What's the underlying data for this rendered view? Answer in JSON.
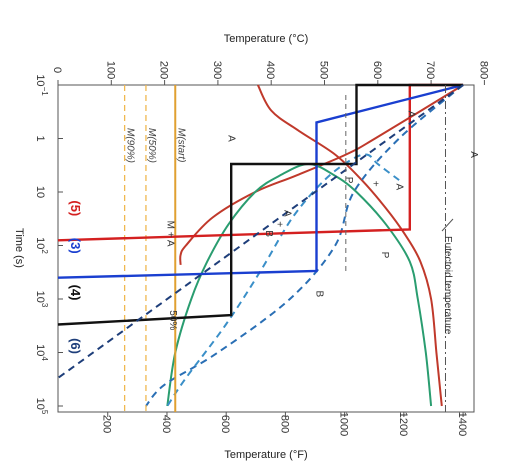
{
  "chart_data": {
    "type": "line",
    "orientation": "rotated-90-clockwise",
    "x_axis": {
      "label": "Time (s)",
      "scale": "log",
      "range_s": [
        0.1,
        100000
      ],
      "ticks": [
        {
          "value": 0.1,
          "base": "10",
          "exp": "−1"
        },
        {
          "value": 1,
          "base": "1",
          "exp": ""
        },
        {
          "value": 10,
          "base": "10",
          "exp": ""
        },
        {
          "value": 100,
          "base": "10",
          "exp": "2"
        },
        {
          "value": 1000,
          "base": "10",
          "exp": "3"
        },
        {
          "value": 10000,
          "base": "10",
          "exp": "4"
        },
        {
          "value": 100000,
          "base": "10",
          "exp": "5"
        }
      ]
    },
    "temp_c_axis": {
      "label": "Temperature (°C)",
      "ticks": [
        "0",
        "100",
        "200",
        "300",
        "400",
        "500",
        "600",
        "700",
        "800"
      ]
    },
    "temp_f_axis": {
      "label": "Temperature (°F)",
      "ticks": [
        "200",
        "400",
        "600",
        "800",
        "1000",
        "1200",
        "1400"
      ]
    },
    "eutectoid_c": 727,
    "eutectoid_label": "Eutectoid temperature",
    "martensite_lines": [
      {
        "label": "M(start)",
        "temp_c": 220,
        "style": "solid",
        "color": "#e0a030"
      },
      {
        "label": "M(50%)",
        "temp_c": 165,
        "style": "dashed",
        "color": "#f0b850"
      },
      {
        "label": "M(90%)",
        "temp_c": 125,
        "style": "dashed",
        "color": "#f0b850"
      }
    ],
    "transformation_curves": [
      {
        "name": "pearlite start",
        "color": "#c0392b",
        "style": "solid",
        "points": [
          [
            0.1,
            760
          ],
          [
            1,
            595
          ],
          [
            2,
            540
          ],
          [
            5,
            445
          ],
          [
            10,
            370
          ],
          [
            30,
            290
          ],
          [
            100,
            240
          ],
          [
            150,
            230
          ],
          [
            230,
            230
          ]
        ]
      },
      {
        "name": "pearlite finish",
        "color": "#c0392b",
        "style": "solid",
        "points": [
          [
            100000,
            720
          ],
          [
            10000,
            710
          ],
          [
            1000,
            700
          ],
          [
            200,
            680
          ],
          [
            60,
            650
          ],
          [
            20,
            615
          ],
          [
            6,
            570
          ],
          [
            2,
            520
          ],
          [
            0.7,
            450
          ],
          [
            0.3,
            400
          ],
          [
            0.1,
            375
          ]
        ]
      },
      {
        "name": "bainite start",
        "color": "#2a9d70",
        "style": "solid",
        "points": [
          [
            100000,
            700
          ],
          [
            10000,
            690
          ],
          [
            1000,
            675
          ],
          [
            200,
            660
          ],
          [
            40,
            615
          ],
          [
            10,
            560
          ],
          [
            5,
            520
          ],
          [
            3,
            470
          ],
          [
            5,
            415
          ],
          [
            10,
            370
          ],
          [
            40,
            320
          ],
          [
            200,
            280
          ],
          [
            1000,
            250
          ],
          [
            10000,
            220
          ],
          [
            100000,
            205
          ]
        ]
      },
      {
        "name": "bainite finish",
        "color": "#2a6fb5",
        "style": "dashed",
        "points": [
          [
            0.1,
            760
          ],
          [
            1,
            640
          ],
          [
            10,
            555
          ],
          [
            100,
            520
          ],
          [
            1000,
            435
          ],
          [
            10000,
            300
          ],
          [
            40000,
            200
          ],
          [
            100000,
            165
          ]
        ]
      },
      {
        "name": "50% completion",
        "color": "#3a8fc8",
        "style": "dashed",
        "points": [
          [
            6,
            640
          ],
          [
            3,
            600
          ],
          [
            2,
            580
          ],
          [
            2.5,
            550
          ],
          [
            6,
            500
          ],
          [
            30,
            440
          ],
          [
            300,
            380
          ],
          [
            3000,
            315
          ],
          [
            30000,
            240
          ],
          [
            100000,
            205
          ]
        ]
      }
    ],
    "heat_treatments": [
      {
        "label": "(5)",
        "color": "#d42020",
        "points": [
          [
            0.1,
            760
          ],
          [
            0.1,
            660
          ],
          [
            50,
            660
          ],
          [
            80,
            0
          ]
        ]
      },
      {
        "label": "(3)",
        "color": "#1a3fd0",
        "points": [
          [
            0.1,
            760
          ],
          [
            0.5,
            485
          ],
          [
            300,
            485
          ],
          [
            400,
            0
          ]
        ]
      },
      {
        "label": "(4)",
        "color": "#111111",
        "points": [
          [
            0.1,
            760
          ],
          [
            0.1,
            560
          ],
          [
            3,
            560
          ],
          [
            3,
            325
          ],
          [
            2000,
            325
          ],
          [
            3000,
            0
          ]
        ]
      },
      {
        "label": "(6)",
        "color": "#1e3e7a",
        "style": "dashed",
        "points": [
          [
            0.1,
            760
          ],
          [
            30000,
            0
          ]
        ]
      }
    ],
    "region_labels": [
      {
        "text": "A",
        "time": 1,
        "temp_c": 320
      },
      {
        "text": "A",
        "time": 2,
        "temp_c": 775
      },
      {
        "text": "A",
        "time": 0.35,
        "temp_c": 658
      },
      {
        "text": "P",
        "time": 6,
        "temp_c": 540
      },
      {
        "text": "+",
        "time": 7,
        "temp_c": 590
      },
      {
        "text": "A",
        "time": 8,
        "temp_c": 635
      },
      {
        "text": "P",
        "time": 150,
        "temp_c": 608
      },
      {
        "text": "A",
        "time": 25,
        "temp_c": 425
      },
      {
        "text": "+",
        "time": 40,
        "temp_c": 410
      },
      {
        "text": "B",
        "time": 60,
        "temp_c": 390
      },
      {
        "text": "B",
        "time": 800,
        "temp_c": 485
      },
      {
        "text": "M + A",
        "time": 60,
        "temp_c": 205
      },
      {
        "text": "50%",
        "time": 2500,
        "temp_c": 210
      }
    ]
  }
}
